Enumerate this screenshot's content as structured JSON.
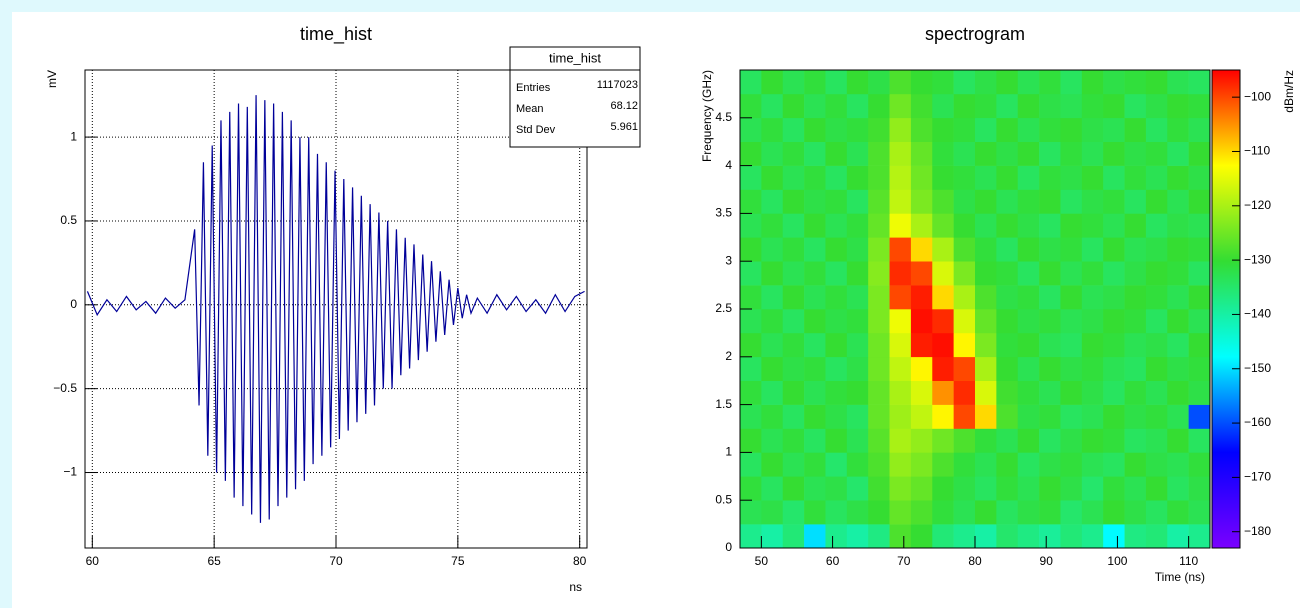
{
  "chart_data": [
    {
      "type": "line",
      "title": "time_hist",
      "xlabel": "ns",
      "ylabel": "mV",
      "xlim": [
        59.7,
        80.3
      ],
      "xticks": [
        60,
        65,
        70,
        75,
        80
      ],
      "ylim": [
        -1.45,
        1.4
      ],
      "yticks": [
        {
          "value": -1,
          "label": "−1"
        },
        {
          "value": -0.5,
          "label": "−0.5"
        },
        0,
        0.5,
        1
      ],
      "grid": true,
      "color": "#000099",
      "x": [
        59.8,
        60.2,
        60.6,
        61.0,
        61.4,
        61.8,
        62.2,
        62.6,
        63.0,
        63.4,
        63.8,
        64.2,
        64.38,
        64.56,
        64.74,
        64.92,
        65.1,
        65.28,
        65.46,
        65.64,
        65.82,
        66.0,
        66.18,
        66.36,
        66.54,
        66.72,
        66.9,
        67.08,
        67.26,
        67.44,
        67.62,
        67.8,
        67.98,
        68.16,
        68.34,
        68.52,
        68.7,
        68.88,
        69.06,
        69.24,
        69.42,
        69.6,
        69.78,
        69.96,
        70.14,
        70.32,
        70.5,
        70.68,
        70.86,
        71.04,
        71.22,
        71.4,
        71.58,
        71.76,
        71.94,
        72.12,
        72.3,
        72.48,
        72.66,
        72.84,
        73.02,
        73.2,
        73.38,
        73.56,
        73.74,
        73.92,
        74.1,
        74.28,
        74.46,
        74.64,
        74.82,
        75.0,
        75.18,
        75.36,
        75.54,
        75.8,
        76.2,
        76.6,
        77.0,
        77.4,
        77.8,
        78.2,
        78.6,
        79.0,
        79.4,
        79.8,
        80.2
      ],
      "values": [
        0.08,
        -0.06,
        0.03,
        -0.04,
        0.05,
        -0.03,
        0.02,
        -0.05,
        0.04,
        -0.02,
        0.03,
        0.45,
        -0.6,
        0.85,
        -0.9,
        0.95,
        -1.0,
        1.1,
        -1.05,
        1.15,
        -1.15,
        1.2,
        -1.2,
        1.18,
        -1.25,
        1.25,
        -1.3,
        1.22,
        -1.28,
        1.2,
        -1.2,
        1.15,
        -1.15,
        1.1,
        -1.1,
        1.0,
        -1.05,
        1.0,
        -0.95,
        0.9,
        -0.9,
        0.85,
        -0.85,
        0.8,
        -0.8,
        0.75,
        -0.75,
        0.7,
        -0.7,
        0.65,
        -0.65,
        0.6,
        -0.6,
        0.55,
        -0.5,
        0.5,
        -0.5,
        0.45,
        -0.42,
        0.4,
        -0.38,
        0.36,
        -0.33,
        0.3,
        -0.28,
        0.26,
        -0.22,
        0.2,
        -0.18,
        0.15,
        -0.12,
        0.1,
        -0.08,
        0.06,
        -0.05,
        0.04,
        -0.05,
        0.06,
        -0.03,
        0.05,
        -0.04,
        0.03,
        -0.05,
        0.06,
        -0.04,
        0.05,
        0.08
      ],
      "stats": {
        "title": "time_hist",
        "rows": [
          {
            "label": "Entries",
            "value": 1117023
          },
          {
            "label": "Mean",
            "value": 68.12
          },
          {
            "label": "Std Dev",
            "value": 5.961
          }
        ]
      }
    },
    {
      "type": "heatmap",
      "title": "spectrogram",
      "xlabel": "Time (ns)",
      "ylabel": "Frequency (GHz)",
      "zlabel": "dBm/Hz",
      "xlim": [
        47,
        113
      ],
      "xticks": [
        50,
        60,
        70,
        80,
        90,
        100,
        110
      ],
      "ylim": [
        0,
        5
      ],
      "yticks": [
        0,
        0.5,
        1,
        1.5,
        2,
        2.5,
        3,
        3.5,
        4,
        4.5
      ],
      "zlim": [
        -183,
        -95
      ],
      "zticks": [
        {
          "value": -180,
          "label": "−180"
        },
        {
          "value": -170,
          "label": "−170"
        },
        {
          "value": -160,
          "label": "−160"
        },
        {
          "value": -150,
          "label": "−150"
        },
        {
          "value": -140,
          "label": "−140"
        },
        {
          "value": -130,
          "label": "−130"
        },
        {
          "value": -120,
          "label": "−120"
        },
        {
          "value": -110,
          "label": "−110"
        },
        {
          "value": -100,
          "label": "−100"
        }
      ],
      "colormap": [
        "#7a00ff",
        "#0000ff",
        "#00ffff",
        "#33dd33",
        "#ffff00",
        "#ff0000"
      ],
      "xbins": [
        47,
        50,
        53,
        56,
        59,
        62,
        65,
        68,
        71,
        74,
        77,
        80,
        83,
        86,
        89,
        92,
        95,
        98,
        101,
        104,
        107,
        110,
        113
      ],
      "ybins": [
        0,
        0.25,
        0.5,
        0.75,
        1,
        1.25,
        1.5,
        1.75,
        2,
        2.25,
        2.5,
        2.75,
        3,
        3.25,
        3.5,
        3.75,
        4,
        4.25,
        4.5,
        4.75,
        5
      ],
      "z": [
        [
          -138,
          -140,
          -136,
          -150,
          -138,
          -140,
          -137,
          -128,
          -130,
          -136,
          -138,
          -140,
          -135,
          -137,
          -139,
          -136,
          -138,
          -148,
          -137,
          -136,
          -140,
          -138
        ],
        [
          -133,
          -132,
          -135,
          -131,
          -134,
          -132,
          -130,
          -126,
          -128,
          -131,
          -133,
          -130,
          -134,
          -132,
          -131,
          -135,
          -133,
          -130,
          -132,
          -134,
          -131,
          -133
        ],
        [
          -131,
          -134,
          -130,
          -133,
          -132,
          -135,
          -129,
          -124,
          -126,
          -130,
          -132,
          -134,
          -131,
          -133,
          -130,
          -132,
          -135,
          -131,
          -133,
          -130,
          -134,
          -132
        ],
        [
          -134,
          -130,
          -133,
          -131,
          -135,
          -131,
          -128,
          -122,
          -124,
          -128,
          -131,
          -133,
          -130,
          -134,
          -132,
          -131,
          -133,
          -134,
          -130,
          -132,
          -133,
          -131
        ],
        [
          -130,
          -133,
          -131,
          -134,
          -130,
          -133,
          -127,
          -120,
          -122,
          -125,
          -128,
          -131,
          -133,
          -130,
          -134,
          -132,
          -130,
          -131,
          -134,
          -133,
          -130,
          -134
        ],
        [
          -133,
          -131,
          -134,
          -130,
          -132,
          -134,
          -126,
          -121,
          -118,
          -112,
          -100,
          -110,
          -128,
          -132,
          -131,
          -134,
          -133,
          -130,
          -132,
          -131,
          -133,
          -160
        ],
        [
          -131,
          -134,
          -130,
          -133,
          -131,
          -130,
          -126,
          -120,
          -116,
          -105,
          -98,
          -116,
          -129,
          -131,
          -133,
          -130,
          -132,
          -134,
          -131,
          -133,
          -130,
          -132
        ],
        [
          -134,
          -130,
          -132,
          -131,
          -134,
          -132,
          -125,
          -118,
          -112,
          -97,
          -100,
          -120,
          -130,
          -133,
          -130,
          -132,
          -131,
          -133,
          -134,
          -130,
          -132,
          -131
        ],
        [
          -130,
          -133,
          -131,
          -134,
          -130,
          -133,
          -125,
          -116,
          -97,
          -96,
          -112,
          -124,
          -131,
          -130,
          -133,
          -134,
          -130,
          -131,
          -133,
          -132,
          -134,
          -130
        ],
        [
          -133,
          -131,
          -134,
          -130,
          -132,
          -131,
          -124,
          -114,
          -96,
          -98,
          -116,
          -126,
          -130,
          -132,
          -131,
          -133,
          -132,
          -130,
          -131,
          -134,
          -130,
          -133
        ],
        [
          -131,
          -134,
          -130,
          -133,
          -131,
          -133,
          -124,
          -100,
          -97,
          -110,
          -120,
          -128,
          -132,
          -131,
          -134,
          -130,
          -133,
          -132,
          -130,
          -131,
          -133,
          -130
        ],
        [
          -134,
          -130,
          -133,
          -131,
          -134,
          -130,
          -123,
          -98,
          -100,
          -116,
          -124,
          -130,
          -131,
          -134,
          -130,
          -133,
          -131,
          -134,
          -132,
          -130,
          -131,
          -134
        ],
        [
          -130,
          -133,
          -131,
          -134,
          -130,
          -132,
          -124,
          -100,
          -110,
          -120,
          -128,
          -131,
          -134,
          -130,
          -132,
          -131,
          -134,
          -130,
          -133,
          -132,
          -130,
          -131
        ],
        [
          -133,
          -131,
          -134,
          -130,
          -133,
          -131,
          -126,
          -114,
          -120,
          -126,
          -130,
          -133,
          -130,
          -132,
          -134,
          -130,
          -131,
          -133,
          -130,
          -134,
          -132,
          -133
        ],
        [
          -131,
          -134,
          -130,
          -132,
          -131,
          -134,
          -127,
          -118,
          -124,
          -128,
          -132,
          -130,
          -133,
          -131,
          -130,
          -134,
          -132,
          -131,
          -134,
          -130,
          -133,
          -130
        ],
        [
          -134,
          -130,
          -133,
          -131,
          -134,
          -130,
          -128,
          -119,
          -125,
          -130,
          -131,
          -133,
          -130,
          -134,
          -131,
          -132,
          -130,
          -134,
          -131,
          -133,
          -130,
          -132
        ],
        [
          -130,
          -133,
          -131,
          -134,
          -130,
          -133,
          -128,
          -120,
          -126,
          -131,
          -133,
          -130,
          -132,
          -130,
          -134,
          -131,
          -133,
          -130,
          -132,
          -131,
          -134,
          -130
        ],
        [
          -133,
          -131,
          -134,
          -130,
          -132,
          -131,
          -129,
          -122,
          -128,
          -130,
          -131,
          -134,
          -130,
          -133,
          -131,
          -130,
          -132,
          -133,
          -130,
          -134,
          -131,
          -133
        ],
        [
          -131,
          -134,
          -130,
          -133,
          -131,
          -134,
          -130,
          -125,
          -129,
          -133,
          -130,
          -131,
          -134,
          -130,
          -132,
          -133,
          -131,
          -130,
          -134,
          -132,
          -130,
          -131
        ],
        [
          -134,
          -130,
          -133,
          -131,
          -134,
          -130,
          -132,
          -128,
          -130,
          -131,
          -134,
          -132,
          -130,
          -133,
          -131,
          -134,
          -130,
          -132,
          -131,
          -130,
          -133,
          -134
        ]
      ]
    }
  ]
}
